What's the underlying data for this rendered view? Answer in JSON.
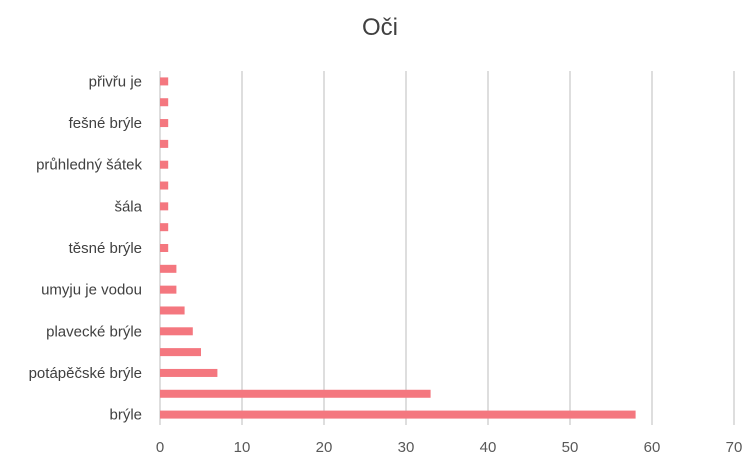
{
  "chart_data": {
    "type": "bar",
    "orientation": "horizontal",
    "title": "Oči",
    "categories": [
      "brýle",
      "",
      "potápěčské brýle",
      "",
      "plavecké brýle",
      "",
      "umyju je vodou",
      "",
      "těsné brýle",
      "",
      "šála",
      "",
      "průhledný šátek",
      "",
      "fešné brýle",
      "",
      "přivřu je"
    ],
    "values": [
      58,
      33,
      7,
      5,
      4,
      3,
      2,
      2,
      1,
      1,
      1,
      1,
      1,
      1,
      1,
      1,
      1
    ],
    "xlim": [
      0,
      70
    ],
    "xticks": [
      "0",
      "10",
      "20",
      "30",
      "40",
      "50",
      "60",
      "70"
    ],
    "grid": "vertical",
    "legend": "none",
    "bar_color": "#f4777f",
    "grid_color": "#d0d0d0"
  }
}
